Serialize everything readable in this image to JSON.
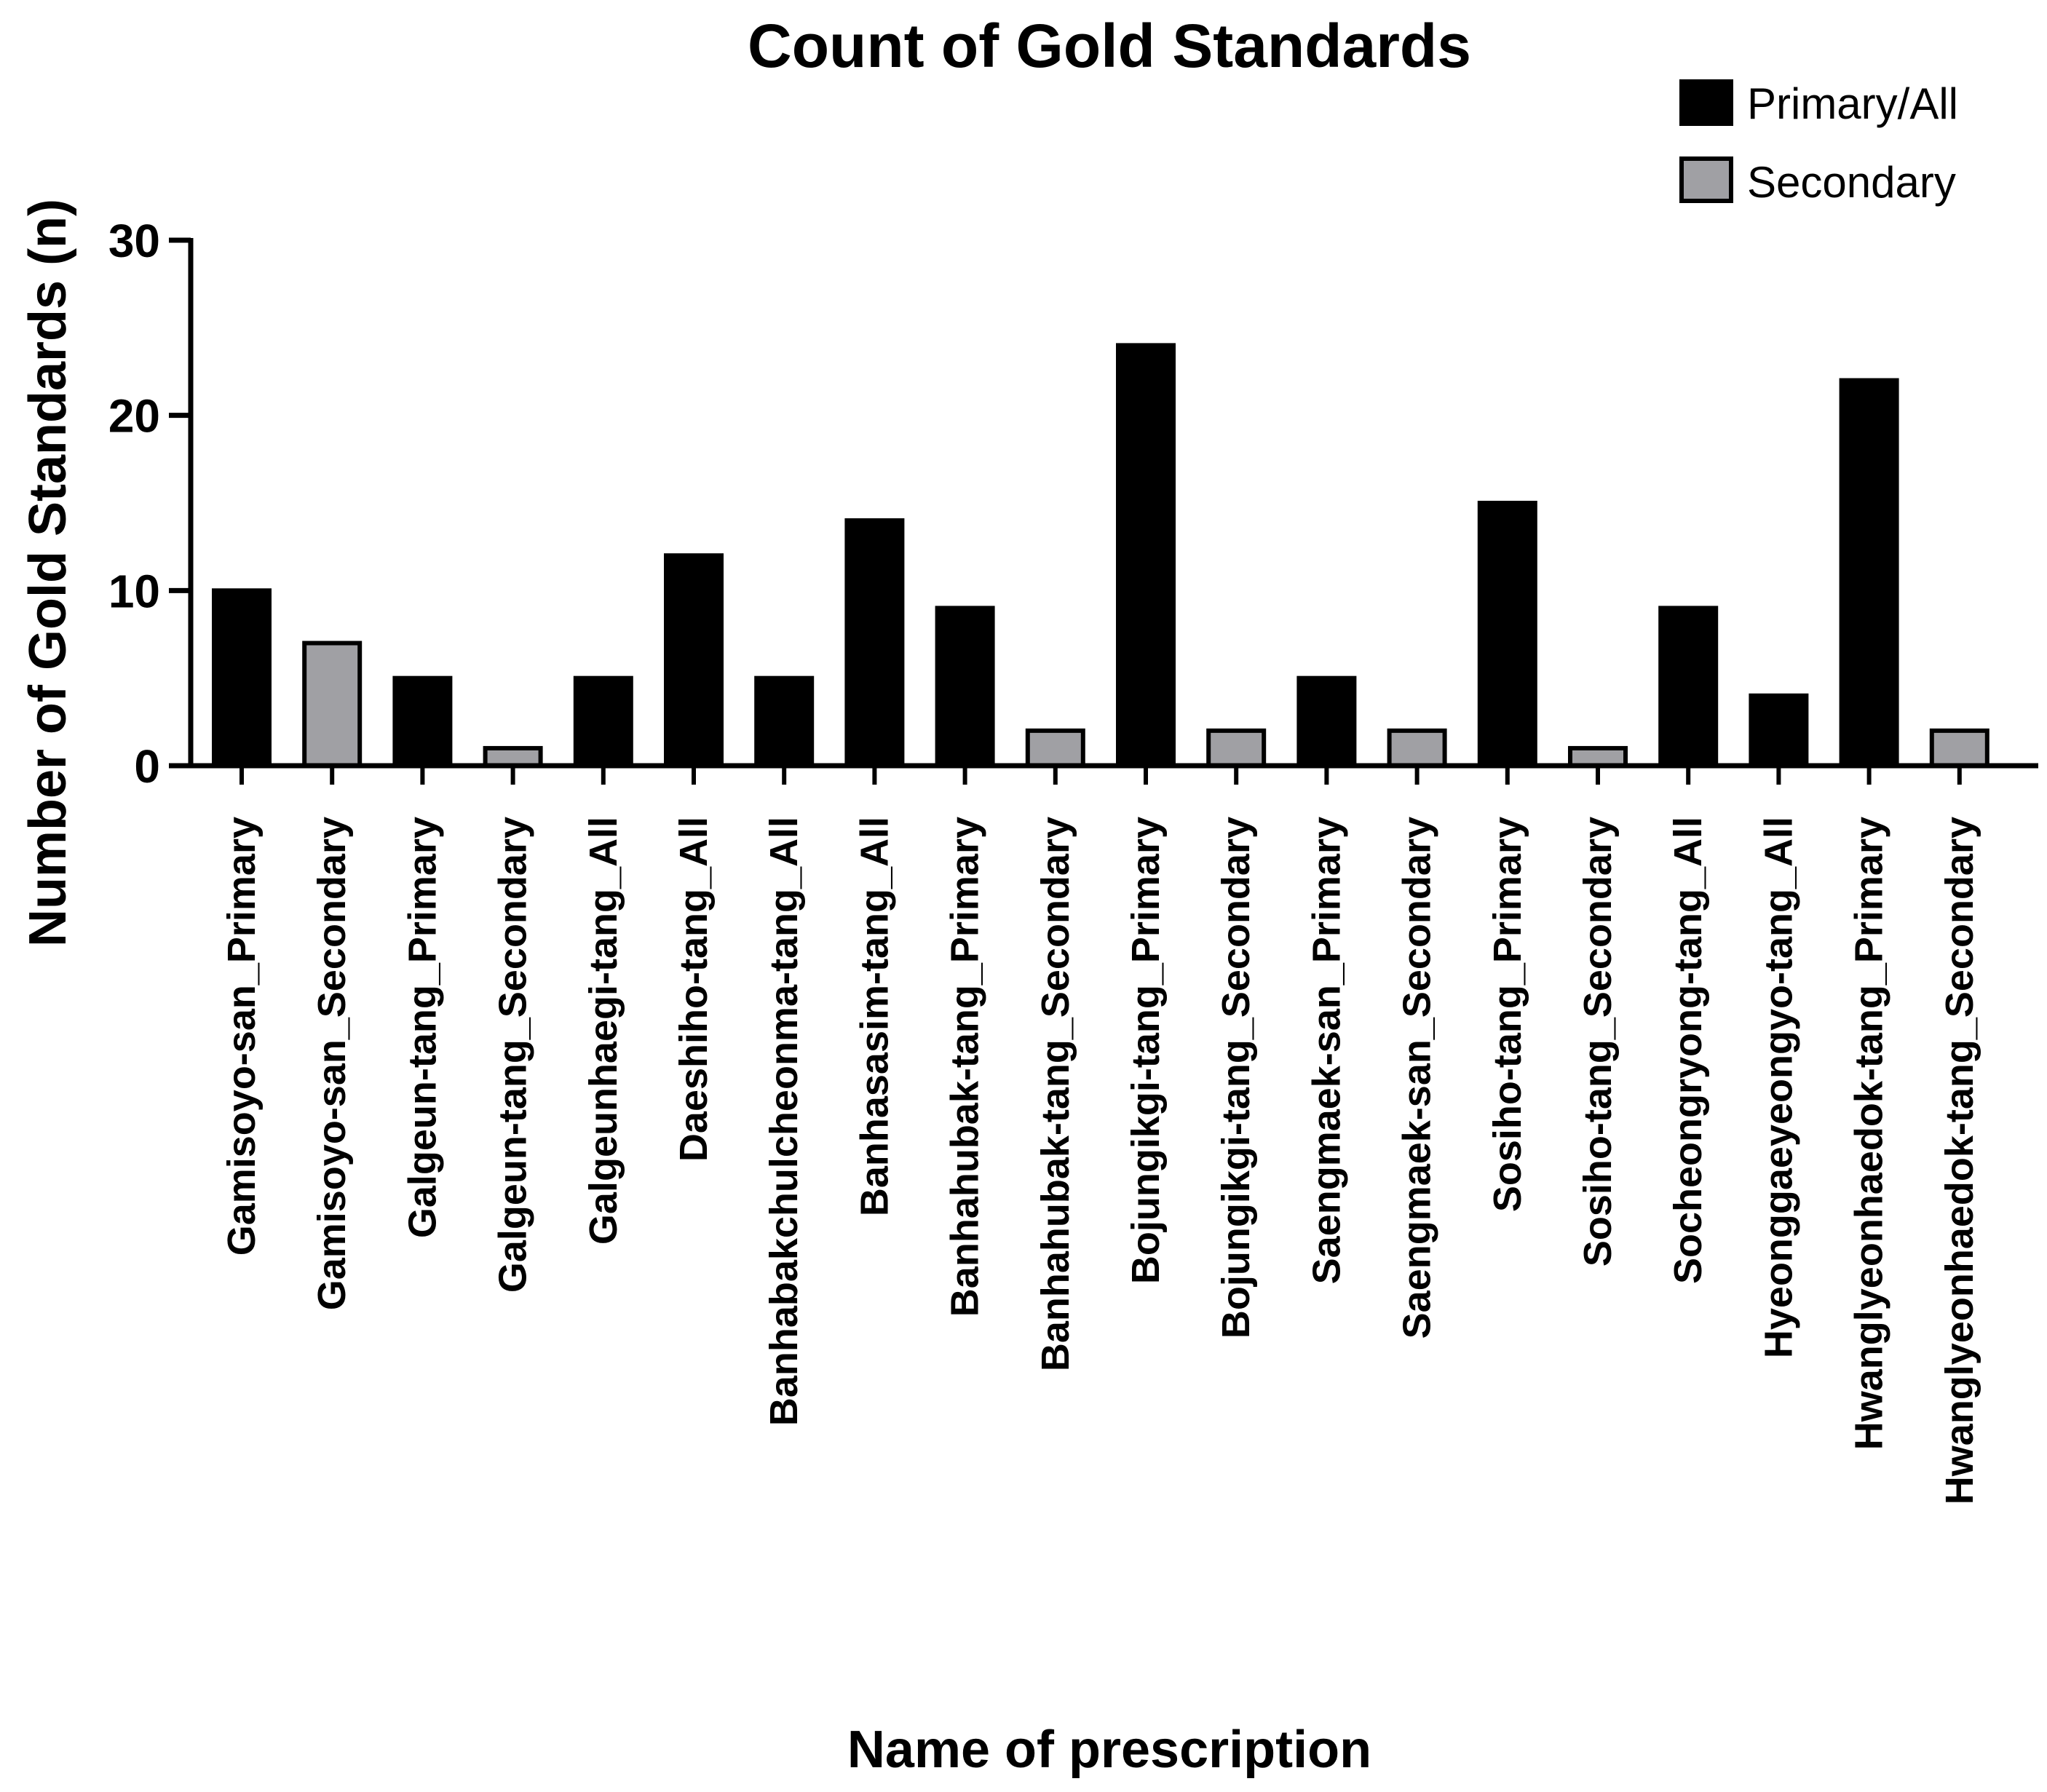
{
  "chart_data": {
    "type": "bar",
    "title": "Count of Gold Standards",
    "xlabel": "Name of prescription",
    "ylabel": "Number of Gold Standards (n)",
    "ylim": [
      0,
      30
    ],
    "yticks": [
      0,
      10,
      20,
      30
    ],
    "grid": false,
    "legend_position": "top-right",
    "legend": [
      {
        "label": "Primary/All",
        "color": "#000000",
        "group": "primary"
      },
      {
        "label": "Secondary",
        "color": "#a0a0a4",
        "group": "secondary"
      }
    ],
    "categories": [
      "Gamisoyo-san_Primary",
      "Gamisoyo-san_Secondary",
      "Galgeun-tang_Primary",
      "Galgeun-tang_Secondary",
      "Galgeunhaegi-tang_All",
      "Daeshiho-tang_All",
      "Banhabakchulcheonma-tang_All",
      "Banhasasim-tang_All",
      "Banhahubak-tang_Primary",
      "Banhahubak-tang_Secondary",
      "Bojungikgi-tang_Primary",
      "Bojungikgi-tang_Secondary",
      "Saengmaek-san_Primary",
      "Saengmaek-san_Secondary",
      "Sosiho-tang_Primary",
      "Sosiho-tang_Secondary",
      "Socheongryong-tang_All",
      "Hyeonggaeyeongyo-tang_All",
      "Hwanglyeonhaedok-tang_Primary",
      "Hwanglyeonhaedok-tang_Secondary"
    ],
    "values": [
      10,
      7,
      5,
      1,
      5,
      12,
      5,
      14,
      9,
      2,
      24,
      2,
      5,
      2,
      15,
      1,
      9,
      4,
      22,
      2
    ],
    "groups": [
      "primary",
      "secondary",
      "primary",
      "secondary",
      "primary",
      "primary",
      "primary",
      "primary",
      "primary",
      "secondary",
      "primary",
      "secondary",
      "primary",
      "secondary",
      "primary",
      "secondary",
      "primary",
      "primary",
      "primary",
      "secondary"
    ]
  }
}
